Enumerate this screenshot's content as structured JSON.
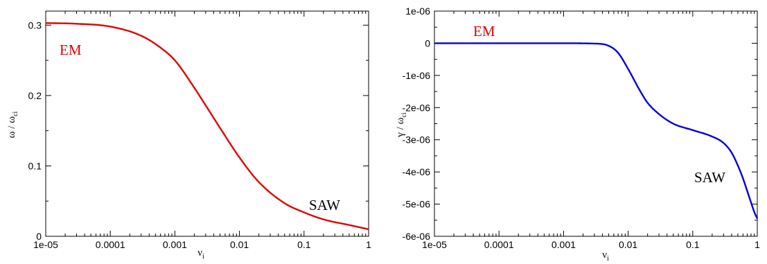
{
  "chart_data": [
    {
      "type": "line",
      "xscale": "log",
      "xlim": [
        1e-05,
        1
      ],
      "ylim": [
        0,
        0.32
      ],
      "xticks": [
        "1e-05",
        "0.0001",
        "0.001",
        "0.01",
        "0.1",
        "1"
      ],
      "yticks": [
        "0",
        "0.1",
        "0.2",
        "0.3"
      ],
      "xlabel": "ν",
      "xlabel_sub": "i",
      "ylabel": "ω / ω",
      "ylabel_sub": "ci",
      "grid": false,
      "color": "#e00000",
      "annotations": [
        {
          "text": "EM",
          "color": "#e00000"
        },
        {
          "text": "SAW",
          "color": "#000000"
        }
      ],
      "series": [
        {
          "x": [
            1e-05,
            3e-05,
            0.0001,
            0.0003,
            0.0006,
            0.001,
            0.002,
            0.003,
            0.005,
            0.01,
            0.02,
            0.05,
            0.1,
            0.2,
            0.5,
            1
          ],
          "y": [
            0.303,
            0.302,
            0.298,
            0.285,
            0.268,
            0.25,
            0.211,
            0.186,
            0.154,
            0.112,
            0.077,
            0.047,
            0.034,
            0.024,
            0.016,
            0.01
          ]
        }
      ]
    },
    {
      "type": "line",
      "xscale": "log",
      "xlim": [
        1e-05,
        1
      ],
      "ylim": [
        -6e-06,
        1e-06
      ],
      "xticks": [
        "1e-05",
        "0.0001",
        "0.001",
        "0.01",
        "0.1",
        "1"
      ],
      "yticks": [
        "1e-06",
        "0",
        "-1e-06",
        "-2e-06",
        "-3e-06",
        "-4e-06",
        "-5e-06",
        "-6e-06"
      ],
      "xlabel": "ν",
      "xlabel_sub": "i",
      "ylabel": "γ / ω",
      "ylabel_sub": "ci",
      "grid": false,
      "color": "#0000dd",
      "annotations": [
        {
          "text": "EM",
          "color": "#e00000"
        },
        {
          "text": "SAW",
          "color": "#000000"
        }
      ],
      "series": [
        {
          "x": [
            1e-05,
            0.0001,
            0.001,
            0.003,
            0.005,
            0.007,
            0.01,
            0.015,
            0.02,
            0.03,
            0.05,
            0.1,
            0.2,
            0.3,
            0.4,
            0.5,
            0.6,
            0.7,
            0.8,
            0.9,
            1
          ],
          "y": [
            0,
            0,
            0,
            -1e-08,
            -8e-08,
            -3e-07,
            -8e-07,
            -1.45e-06,
            -1.85e-06,
            -2.2e-06,
            -2.5e-06,
            -2.7e-06,
            -2.9e-06,
            -3.1e-06,
            -3.4e-06,
            -3.8e-06,
            -4.2e-06,
            -4.6e-06,
            -4.95e-06,
            -5.25e-06,
            -5.45e-06
          ]
        }
      ]
    }
  ]
}
